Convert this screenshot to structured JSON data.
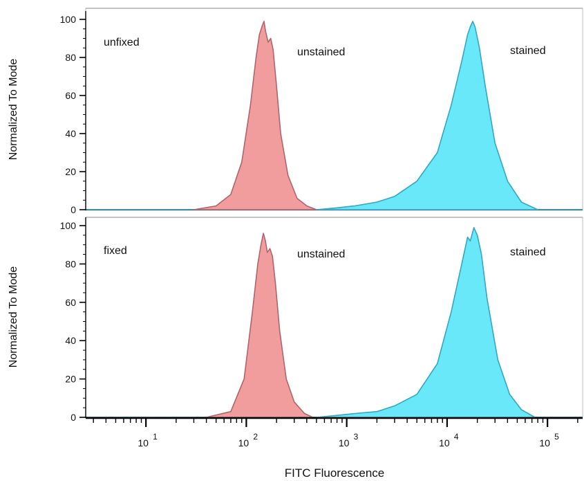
{
  "chart_data": [
    {
      "type": "area",
      "ylabel": "Normalized To Mode",
      "ylim": [
        0,
        100
      ],
      "yticks": [
        0,
        20,
        40,
        60,
        80,
        100
      ],
      "xscale": "log",
      "annotations": [
        "unfixed",
        "unstained",
        "stained"
      ],
      "series": [
        {
          "name": "unstained",
          "color": "#f08c8c",
          "x": [
            30,
            50,
            70,
            90,
            110,
            125,
            135,
            145,
            150,
            155,
            165,
            175,
            185,
            200,
            220,
            260,
            320,
            400,
            500
          ],
          "y": [
            0,
            2,
            8,
            25,
            55,
            80,
            92,
            97,
            99,
            94,
            88,
            90,
            84,
            65,
            40,
            18,
            6,
            2,
            0
          ]
        },
        {
          "name": "stained",
          "color": "#4ee4f7",
          "x": [
            500,
            800,
            1200,
            2000,
            3000,
            5000,
            8000,
            11000,
            14000,
            16000,
            17000,
            18000,
            19000,
            21000,
            24000,
            30000,
            40000,
            55000,
            80000
          ],
          "y": [
            0,
            1,
            2,
            4,
            7,
            15,
            30,
            55,
            78,
            92,
            96,
            99,
            96,
            85,
            65,
            35,
            15,
            4,
            0
          ]
        }
      ]
    },
    {
      "type": "area",
      "ylabel": "Normalized To Mode",
      "xlabel": "FITC Fluorescence",
      "ylim": [
        0,
        100
      ],
      "yticks": [
        0,
        20,
        40,
        60,
        80,
        100
      ],
      "xscale": "log",
      "xlim_exp": [
        0.4,
        5.35
      ],
      "xtick_exponents": [
        1,
        2,
        3,
        4,
        5
      ],
      "xtick_base": "10",
      "annotations": [
        "fixed",
        "unstained",
        "stained"
      ],
      "series": [
        {
          "name": "unstained",
          "color": "#f08c8c",
          "x": [
            40,
            70,
            95,
            115,
            130,
            140,
            148,
            155,
            162,
            172,
            182,
            195,
            215,
            250,
            300,
            380,
            460
          ],
          "y": [
            0,
            3,
            20,
            55,
            80,
            90,
            96,
            92,
            86,
            88,
            84,
            70,
            45,
            20,
            8,
            2,
            0
          ]
        },
        {
          "name": "stained",
          "color": "#4ee4f7",
          "x": [
            500,
            800,
            1200,
            2000,
            3000,
            5000,
            8000,
            11000,
            14000,
            16000,
            17000,
            18500,
            20000,
            22000,
            25000,
            32000,
            42000,
            55000,
            75000
          ],
          "y": [
            0,
            1,
            2,
            3,
            6,
            12,
            28,
            55,
            80,
            94,
            92,
            99,
            95,
            85,
            62,
            30,
            12,
            4,
            0
          ]
        }
      ]
    }
  ]
}
